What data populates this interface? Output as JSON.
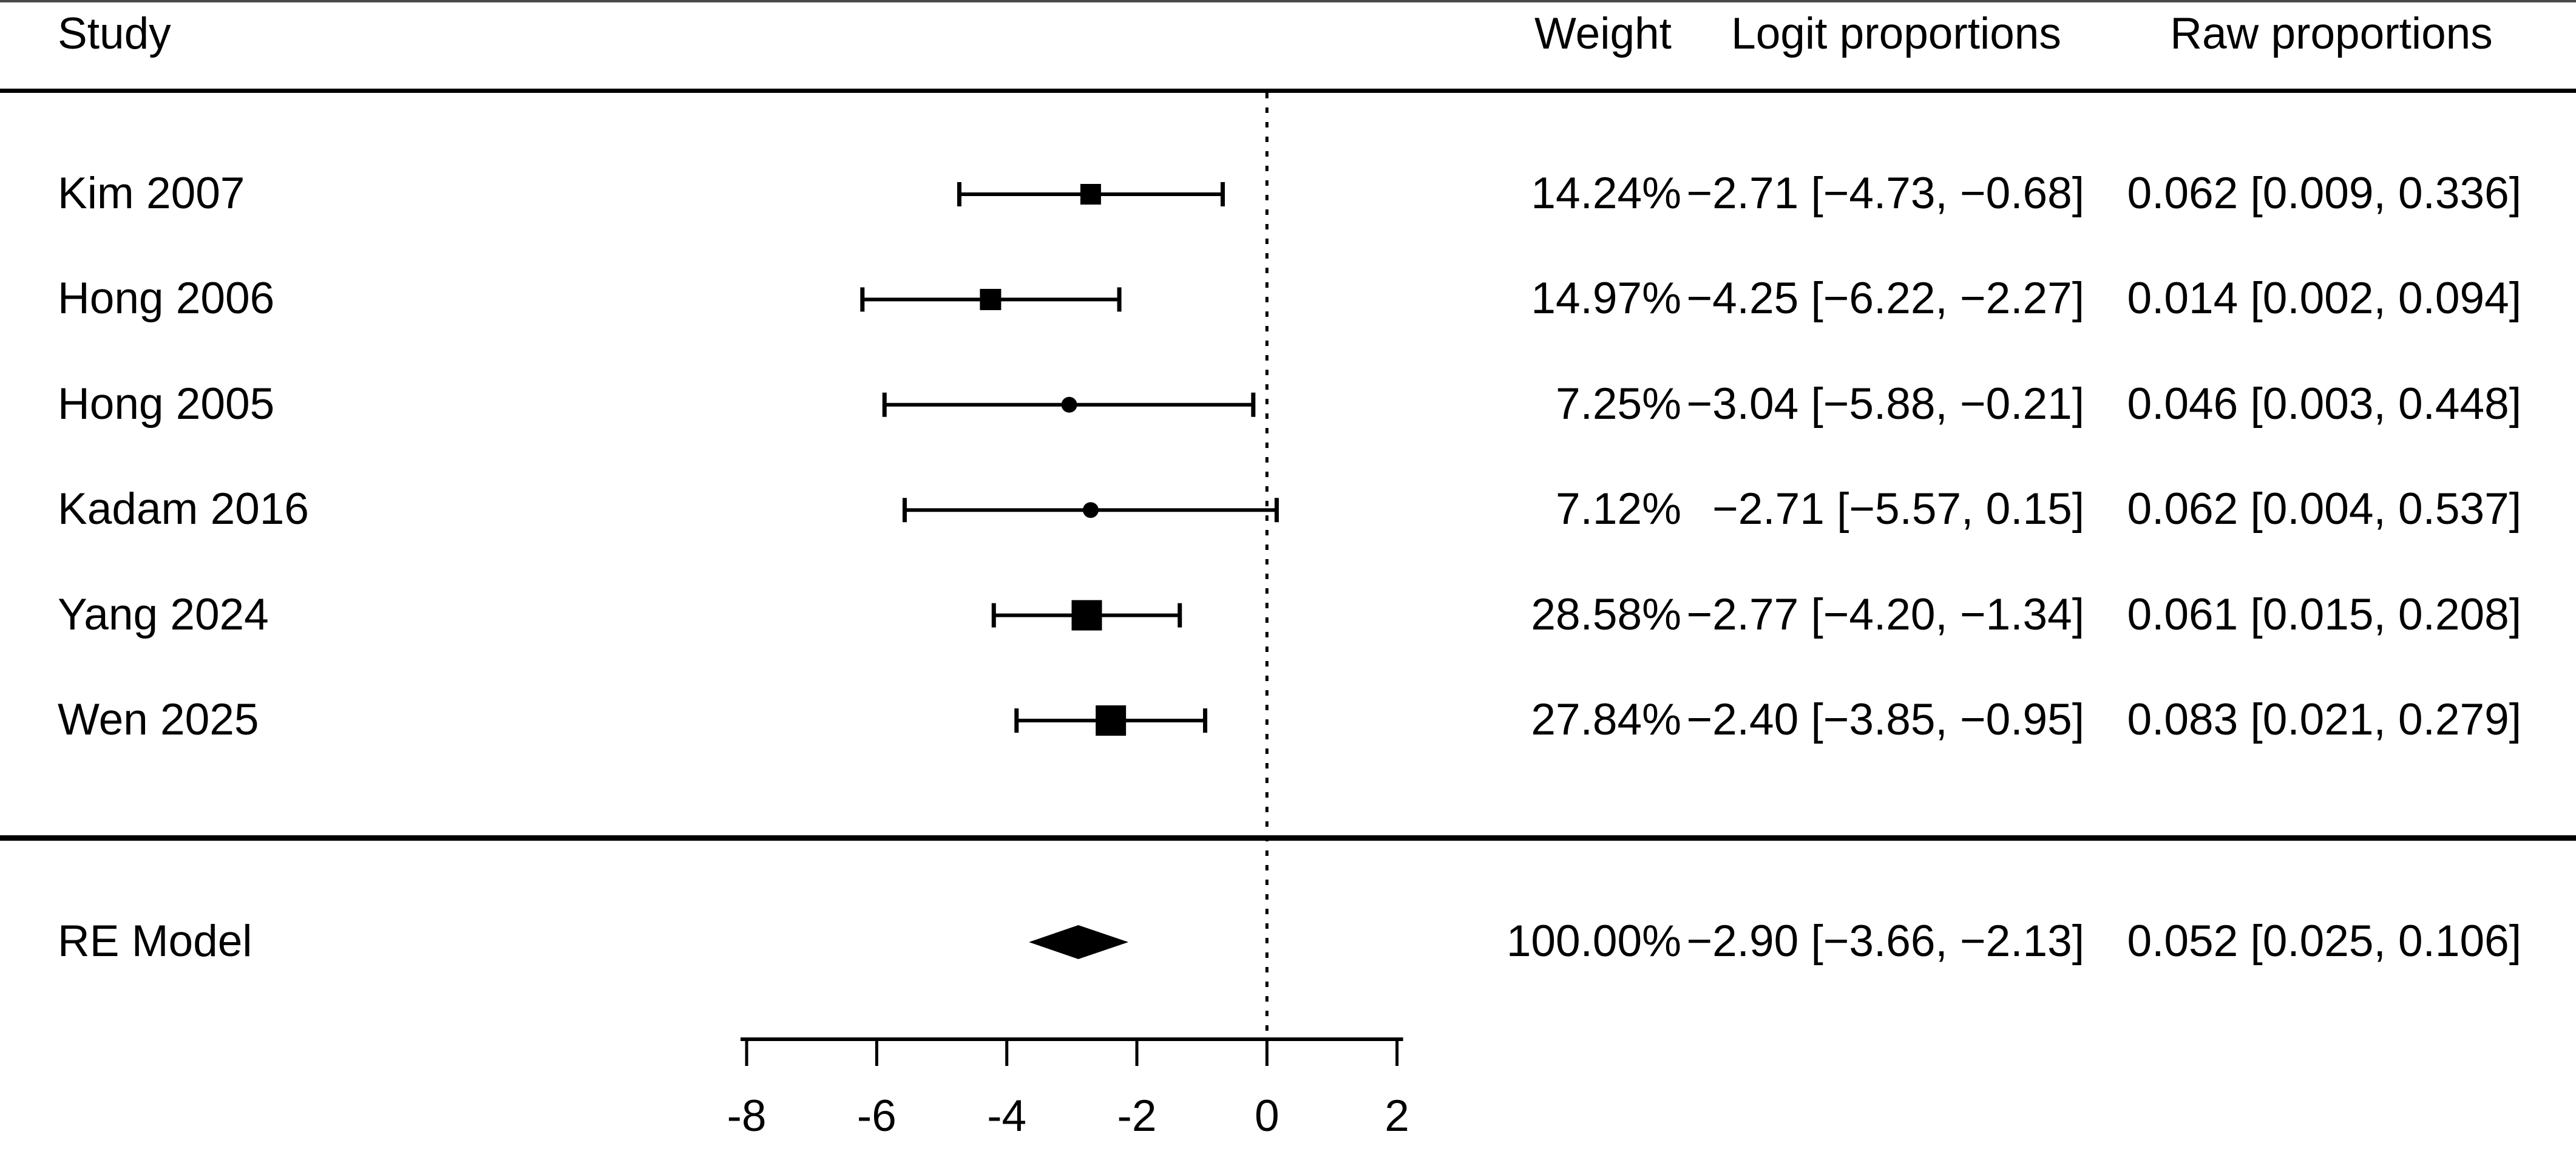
{
  "colors": {
    "text": "#000000",
    "line": "#000000",
    "marker": "#000000",
    "background": "#ffffff"
  },
  "table": {
    "headers": {
      "study": "Study",
      "weight": "Weight",
      "logit": "Logit proportions",
      "raw": "Raw proportions"
    }
  },
  "chart_data": {
    "type": "forest",
    "xlabel": "",
    "x_ticks": [
      -8,
      -6,
      -4,
      -2,
      0,
      2
    ],
    "x_tick_labels": [
      "-8",
      "-6",
      "-4",
      "-2",
      "0",
      "2"
    ],
    "x_axis_range": [
      -8,
      2
    ],
    "reference_line_x": 0,
    "legend_position": "none",
    "grid": false,
    "studies": [
      {
        "label": "Kim 2007",
        "weight": "14.24%",
        "logit": "−2.71 [−4.73, −0.68]",
        "raw": "0.062 [0.009, 0.336]",
        "estimate": -2.71,
        "ci_lower": -4.73,
        "ci_upper": -0.68,
        "marker": "square",
        "marker_size": 34
      },
      {
        "label": "Hong 2006",
        "weight": "14.97%",
        "logit": "−4.25 [−6.22, −2.27]",
        "raw": "0.014 [0.002, 0.094]",
        "estimate": -4.25,
        "ci_lower": -6.22,
        "ci_upper": -2.27,
        "marker": "square",
        "marker_size": 35
      },
      {
        "label": "Hong 2005",
        "weight": "7.25%",
        "logit": "−3.04 [−5.88, −0.21]",
        "raw": "0.046 [0.003, 0.448]",
        "estimate": -3.04,
        "ci_lower": -5.88,
        "ci_upper": -0.21,
        "marker": "circle",
        "marker_size": 26
      },
      {
        "label": "Kadam 2016",
        "weight": "7.12%",
        "logit": "−2.71 [−5.57, 0.15]",
        "raw": "0.062 [0.004, 0.537]",
        "estimate": -2.71,
        "ci_lower": -5.57,
        "ci_upper": 0.15,
        "marker": "circle",
        "marker_size": 26
      },
      {
        "label": "Yang 2024",
        "weight": "28.58%",
        "logit": "−2.77 [−4.20, −1.34]",
        "raw": "0.061 [0.015, 0.208]",
        "estimate": -2.77,
        "ci_lower": -4.2,
        "ci_upper": -1.34,
        "marker": "square",
        "marker_size": 50
      },
      {
        "label": "Wen 2025",
        "weight": "27.84%",
        "logit": "−2.40 [−3.85, −0.95]",
        "raw": "0.083 [0.021, 0.279]",
        "estimate": -2.4,
        "ci_lower": -3.85,
        "ci_upper": -0.95,
        "marker": "square",
        "marker_size": 50
      }
    ],
    "summary": {
      "label": "RE Model",
      "weight": "100.00%",
      "logit": "−2.90 [−3.66, −2.13]",
      "raw": "0.052 [0.025, 0.106]",
      "estimate": -2.9,
      "ci_lower": -3.66,
      "ci_upper": -2.13,
      "marker": "diamond"
    }
  }
}
